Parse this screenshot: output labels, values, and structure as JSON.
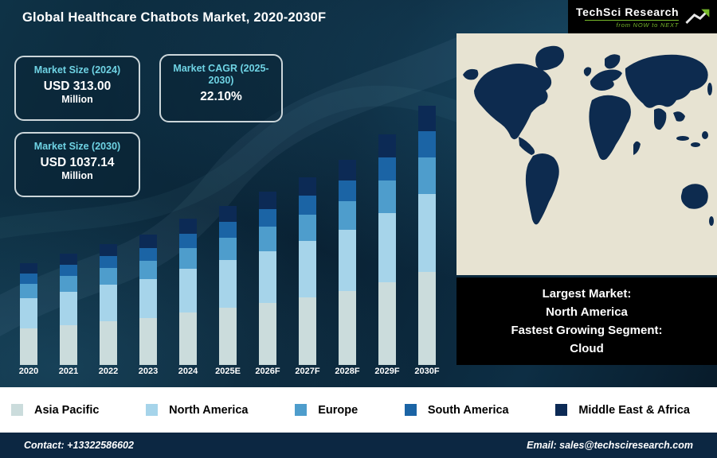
{
  "header": {
    "title": "Global Healthcare Chatbots Market, 2020-2030F",
    "logo": {
      "name": "TechSci Research",
      "tagline": "from NOW to NEXT"
    }
  },
  "info_boxes": [
    {
      "label": "Market Size (2024)",
      "value": "USD 313.00",
      "unit": "Million"
    },
    {
      "label": "Market CAGR (2025-2030)",
      "value": "22.10%",
      "unit": ""
    },
    {
      "label": "Market Size (2030)",
      "value": "USD 1037.14",
      "unit": "Million"
    }
  ],
  "chart_data": {
    "type": "bar",
    "stacked": true,
    "title": "Global Healthcare Chatbots Market, 2020-2030F",
    "categories": [
      "2020",
      "2021",
      "2022",
      "2023",
      "2024",
      "2025E",
      "2026F",
      "2027F",
      "2028F",
      "2029F",
      "2030F"
    ],
    "series": [
      {
        "name": "Asia Pacific",
        "color": "#cbdcdc",
        "values": [
          46,
          50,
          55,
          59,
          66,
          72,
          78,
          85,
          93,
          104,
          117
        ]
      },
      {
        "name": "North America",
        "color": "#a6d4ea",
        "values": [
          38,
          42,
          46,
          49,
          55,
          60,
          65,
          71,
          77,
          87,
          98
        ]
      },
      {
        "name": "Europe",
        "color": "#4e9dcc",
        "values": [
          18,
          20,
          21,
          23,
          26,
          28,
          31,
          33,
          36,
          41,
          46
        ]
      },
      {
        "name": "South America",
        "color": "#1b64a5",
        "values": [
          13,
          14,
          15,
          16,
          18,
          20,
          22,
          24,
          26,
          29,
          33
        ]
      },
      {
        "name": "Middle East & Africa",
        "color": "#0c2a55",
        "values": [
          13,
          14,
          15,
          17,
          19,
          20,
          22,
          23,
          26,
          29,
          32
        ]
      }
    ],
    "value_unit": "relative height (no value axis shown)",
    "labeled_values": {
      "2024": "USD 313.00 Million",
      "2030F": "USD 1037.14 Million"
    },
    "cagr_label": "Market CAGR (2025-2030) 22.10%",
    "legend_position": "bottom",
    "grid": false
  },
  "highlight_box": {
    "lines": [
      "Largest Market:",
      "North America",
      "Fastest Growing Segment:",
      "Cloud"
    ]
  },
  "footer": {
    "contact": "Contact: +13322586602",
    "email": "Email: sales@techsciresearch.com"
  }
}
